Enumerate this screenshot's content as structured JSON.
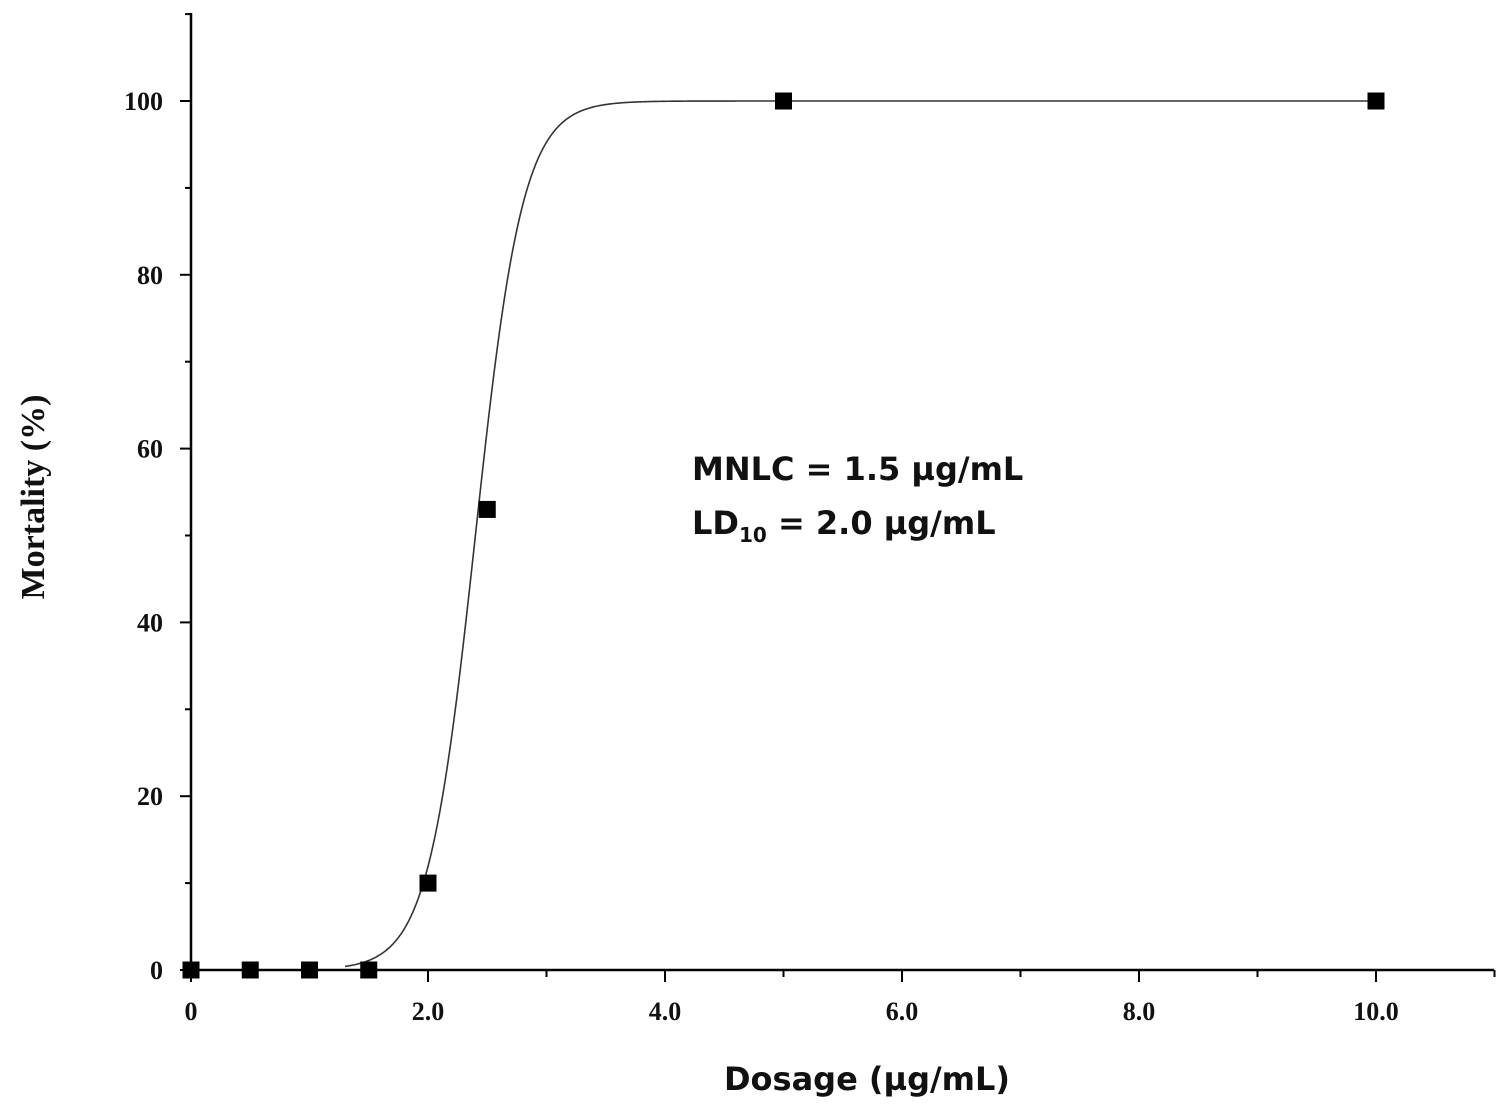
{
  "chart_data": {
    "type": "scatter",
    "title": "",
    "xlabel": "Dosage (µg/mL)",
    "ylabel": "Mortality (%)",
    "xlim": [
      0,
      11
    ],
    "ylim": [
      0,
      110
    ],
    "x_ticks": [
      0,
      2.0,
      4.0,
      6.0,
      8.0,
      10.0
    ],
    "x_tick_labels": [
      "0",
      "2.0",
      "4.0",
      "6.0",
      "8.0",
      "10.0"
    ],
    "y_ticks": [
      0,
      20,
      40,
      60,
      80,
      100
    ],
    "y_tick_labels": [
      "0",
      "20",
      "40",
      "60",
      "80",
      "100"
    ],
    "grid": false,
    "points": {
      "x": [
        0,
        0.5,
        1.0,
        1.5,
        2.0,
        2.5,
        5.0,
        10.0
      ],
      "y": [
        0,
        0,
        0,
        0,
        10,
        53,
        100,
        100
      ]
    },
    "fit_curve": {
      "form": "sigmoidal",
      "x50": 2.4,
      "slope": 0.2,
      "bottom": 0,
      "top": 100
    },
    "annotations": [
      {
        "text": "MNLC = 1.5 µg/mL"
      },
      {
        "prefix": "LD",
        "subscript": "10",
        "suffix": " = 2.0 µg/mL"
      }
    ],
    "colors": {
      "marker": "#000000",
      "curve": "#333333",
      "axis": "#000000"
    }
  }
}
